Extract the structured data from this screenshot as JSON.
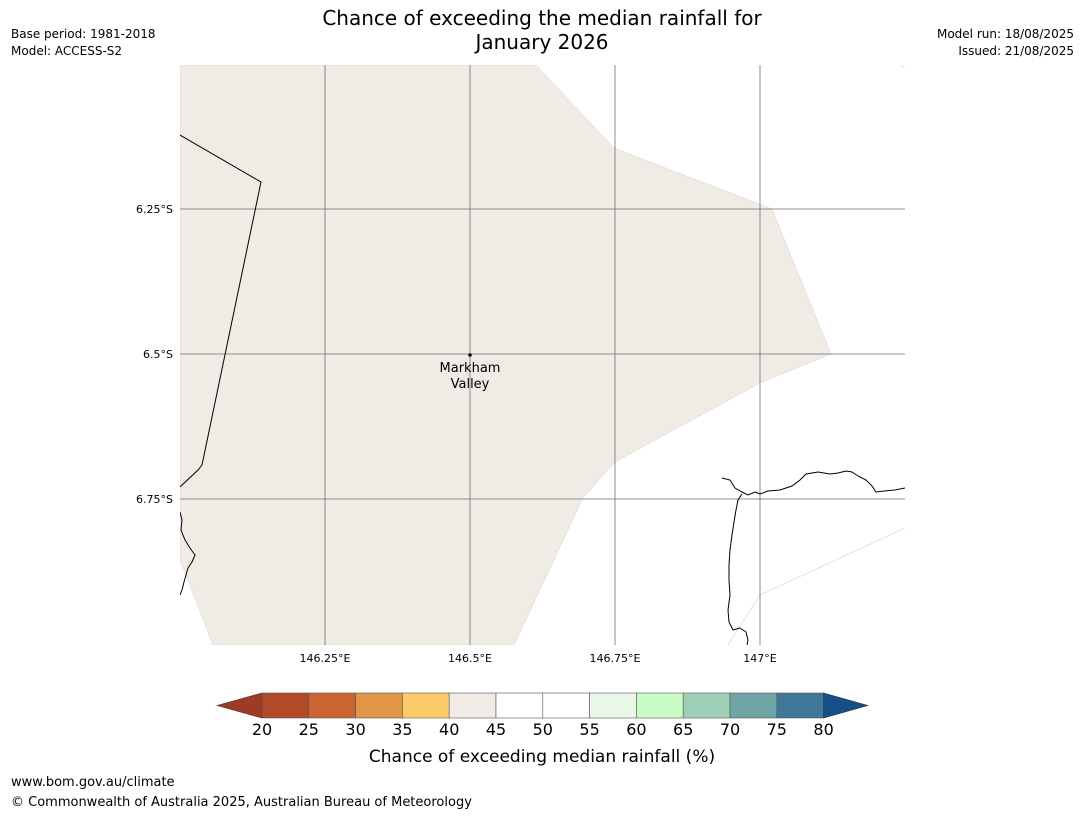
{
  "header": {
    "title_line1": "Chance of exceeding the median rainfall for",
    "title_line2": "January 2026",
    "base_period": "Base period: 1981-2018",
    "model": "Model: ACCESS-S2",
    "model_run": "Model run: 18/08/2025",
    "issued": "Issued: 21/08/2025"
  },
  "map": {
    "lat_ticks": [
      "6.25°S",
      "6.5°S",
      "6.75°S"
    ],
    "lon_ticks": [
      "146.25°E",
      "146.5°E",
      "146.75°E",
      "147°E"
    ],
    "region_label_line1": "Markham",
    "region_label_line2": "Valley",
    "region_fill": "#f0ebe5",
    "region_value_bin": "40-45"
  },
  "colorbar": {
    "title": "Chance of exceeding median rainfall (%)",
    "ticks": [
      "20",
      "25",
      "30",
      "35",
      "40",
      "45",
      "50",
      "55",
      "60",
      "65",
      "70",
      "75",
      "80"
    ],
    "under_color": "#9e3a26",
    "over_color": "#154f8a",
    "colors": [
      "#b24a29",
      "#cc6431",
      "#e39547",
      "#fdcb6a",
      "#f0ebe5",
      "#ffffff",
      "#ffffff",
      "#e9f7e9",
      "#c8fbc6",
      "#9fd0b7",
      "#6fa5a6",
      "#3f7898"
    ]
  },
  "footer": {
    "url": "www.bom.gov.au/climate",
    "copyright": "© Commonwealth of Australia 2025, Australian Bureau of Meteorology"
  }
}
